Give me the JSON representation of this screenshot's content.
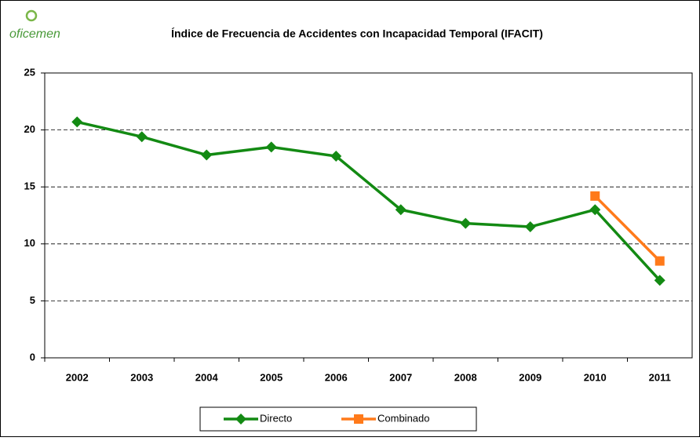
{
  "logo": "oficemen",
  "chart_data": {
    "type": "line",
    "title": "Índice de Frecuencia de Accidentes con Incapacidad Temporal (IFACIT)",
    "categories": [
      "2002",
      "2003",
      "2004",
      "2005",
      "2006",
      "2007",
      "2008",
      "2009",
      "2010",
      "2011"
    ],
    "series": [
      {
        "name": "Directo",
        "color": "#138a13",
        "marker": "diamond",
        "values": [
          20.7,
          19.4,
          17.8,
          18.5,
          17.7,
          13.0,
          11.8,
          11.5,
          13.0,
          6.8
        ]
      },
      {
        "name": "Combinado",
        "color": "#ff7a1a",
        "marker": "square",
        "values": [
          null,
          null,
          null,
          null,
          null,
          null,
          null,
          null,
          14.2,
          8.5
        ]
      }
    ],
    "ylim": [
      0,
      25
    ],
    "yticks": [
      0,
      5,
      10,
      15,
      20,
      25
    ],
    "grid": true,
    "legend": "bottom"
  }
}
